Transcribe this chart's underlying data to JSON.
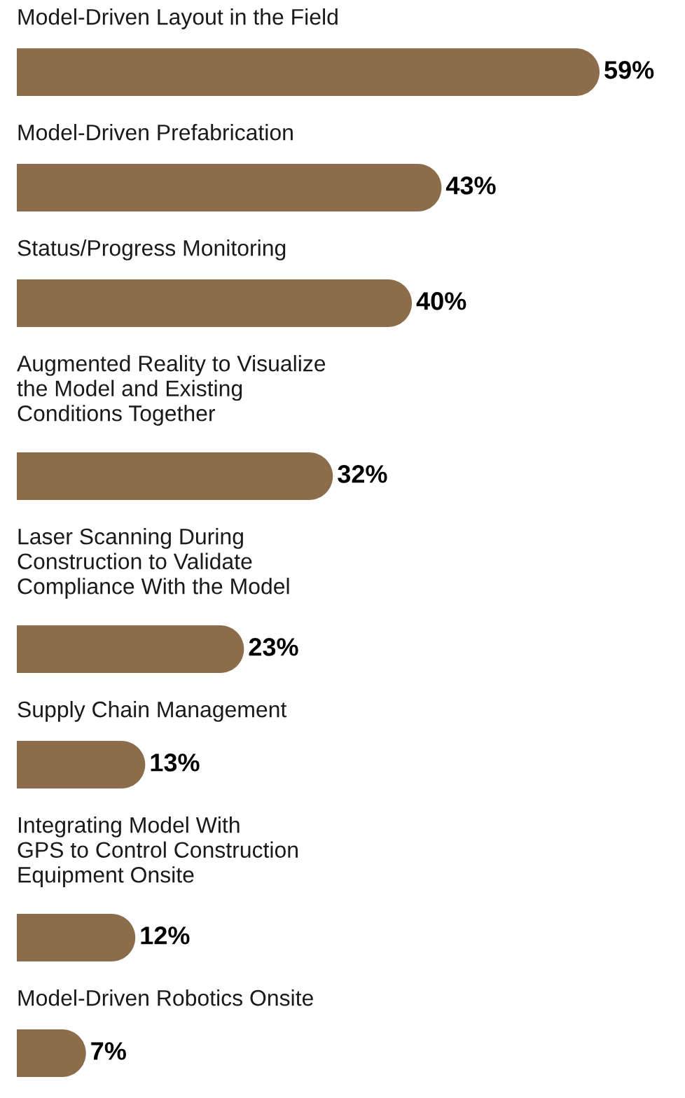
{
  "chart_data": {
    "type": "bar",
    "orientation": "horizontal",
    "categories": [
      "Model-Driven Layout in the Field",
      "Model-Driven Prefabrication",
      "Status/Progress Monitoring",
      "Augmented Reality to Visualize\nthe Model and Existing\nConditions Together",
      "Laser Scanning During\nConstruction to Validate\nCompliance With the Model",
      "Supply Chain Management",
      "Integrating Model With\nGPS to Control Construction\nEquipment Onsite",
      "Model-Driven Robotics Onsite"
    ],
    "values": [
      59,
      43,
      40,
      32,
      23,
      13,
      12,
      7
    ],
    "color": "#8b6d4b",
    "value_labels": [
      "59%",
      "43%",
      "40%",
      "32%",
      "23%",
      "13%",
      "12%",
      "7%"
    ],
    "data_labels": true
  }
}
